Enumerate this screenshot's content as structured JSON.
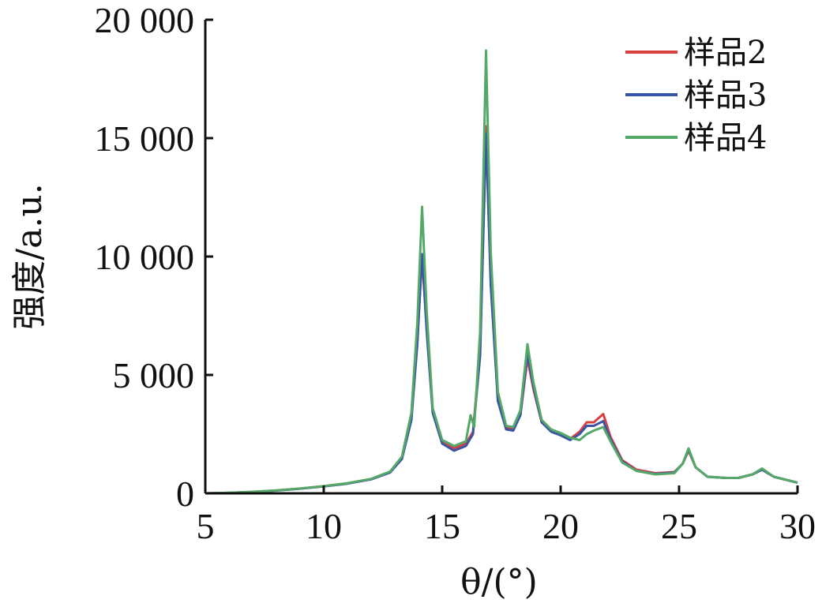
{
  "chart_data": {
    "type": "line",
    "title": "",
    "xlabel": "θ/(°)",
    "ylabel": "强度/a.u.",
    "xlim": [
      5,
      30
    ],
    "ylim": [
      0,
      20000
    ],
    "x_ticks": [
      5,
      10,
      15,
      20,
      25,
      30
    ],
    "y_ticks": [
      0,
      5000,
      10000,
      15000,
      20000
    ],
    "x_tick_labels": [
      "5",
      "10",
      "15",
      "20",
      "25",
      "30"
    ],
    "y_tick_labels": [
      "0",
      "5 000",
      "10 000",
      "15 000",
      "20 000"
    ],
    "grid": false,
    "legend_position": "top-right",
    "series": [
      {
        "name": "样品2",
        "color": "#d94040",
        "points": [
          [
            5,
            0
          ],
          [
            6,
            20
          ],
          [
            7,
            60
          ],
          [
            8,
            120
          ],
          [
            9,
            200
          ],
          [
            10,
            300
          ],
          [
            11,
            420
          ],
          [
            12,
            600
          ],
          [
            12.8,
            900
          ],
          [
            13.3,
            1500
          ],
          [
            13.7,
            3200
          ],
          [
            13.95,
            6500
          ],
          [
            14.15,
            10000
          ],
          [
            14.35,
            7000
          ],
          [
            14.6,
            3500
          ],
          [
            15,
            2200
          ],
          [
            15.5,
            1900
          ],
          [
            16,
            2100
          ],
          [
            16.3,
            2600
          ],
          [
            16.6,
            6000
          ],
          [
            16.85,
            15500
          ],
          [
            17.05,
            9000
          ],
          [
            17.35,
            4000
          ],
          [
            17.7,
            2800
          ],
          [
            18,
            2700
          ],
          [
            18.3,
            3300
          ],
          [
            18.6,
            5700
          ],
          [
            18.85,
            4400
          ],
          [
            19.2,
            3000
          ],
          [
            19.6,
            2650
          ],
          [
            20,
            2500
          ],
          [
            20.4,
            2300
          ],
          [
            20.8,
            2600
          ],
          [
            21.1,
            3000
          ],
          [
            21.4,
            3000
          ],
          [
            21.8,
            3350
          ],
          [
            22.1,
            2400
          ],
          [
            22.6,
            1400
          ],
          [
            23.2,
            1000
          ],
          [
            24,
            850
          ],
          [
            24.8,
            900
          ],
          [
            25.15,
            1250
          ],
          [
            25.4,
            1800
          ],
          [
            25.7,
            1100
          ],
          [
            26.2,
            700
          ],
          [
            27,
            650
          ],
          [
            27.5,
            650
          ],
          [
            28.1,
            800
          ],
          [
            28.5,
            1000
          ],
          [
            29,
            700
          ],
          [
            30,
            450
          ]
        ]
      },
      {
        "name": "样品3",
        "color": "#3b55a5",
        "points": [
          [
            5,
            0
          ],
          [
            6,
            20
          ],
          [
            7,
            60
          ],
          [
            8,
            115
          ],
          [
            9,
            195
          ],
          [
            10,
            290
          ],
          [
            11,
            410
          ],
          [
            12,
            590
          ],
          [
            12.8,
            880
          ],
          [
            13.3,
            1450
          ],
          [
            13.7,
            3100
          ],
          [
            13.95,
            6300
          ],
          [
            14.15,
            10100
          ],
          [
            14.35,
            6800
          ],
          [
            14.6,
            3400
          ],
          [
            15,
            2100
          ],
          [
            15.5,
            1800
          ],
          [
            16,
            2000
          ],
          [
            16.3,
            2500
          ],
          [
            16.6,
            5800
          ],
          [
            16.85,
            15200
          ],
          [
            17.05,
            8800
          ],
          [
            17.35,
            3900
          ],
          [
            17.7,
            2700
          ],
          [
            18,
            2650
          ],
          [
            18.3,
            3300
          ],
          [
            18.6,
            5900
          ],
          [
            18.85,
            4500
          ],
          [
            19.2,
            3000
          ],
          [
            19.6,
            2600
          ],
          [
            20,
            2450
          ],
          [
            20.4,
            2250
          ],
          [
            20.8,
            2500
          ],
          [
            21.1,
            2850
          ],
          [
            21.4,
            2850
          ],
          [
            21.8,
            3050
          ],
          [
            22.1,
            2300
          ],
          [
            22.6,
            1350
          ],
          [
            23.2,
            950
          ],
          [
            24,
            820
          ],
          [
            24.8,
            880
          ],
          [
            25.15,
            1250
          ],
          [
            25.4,
            1850
          ],
          [
            25.7,
            1100
          ],
          [
            26.2,
            700
          ],
          [
            27,
            650
          ],
          [
            27.5,
            650
          ],
          [
            28.1,
            800
          ],
          [
            28.5,
            1000
          ],
          [
            29,
            700
          ],
          [
            30,
            450
          ]
        ]
      },
      {
        "name": "样品4",
        "color": "#55a868",
        "points": [
          [
            5,
            0
          ],
          [
            6,
            25
          ],
          [
            7,
            65
          ],
          [
            8,
            125
          ],
          [
            9,
            205
          ],
          [
            10,
            305
          ],
          [
            11,
            430
          ],
          [
            12,
            610
          ],
          [
            12.8,
            920
          ],
          [
            13.3,
            1550
          ],
          [
            13.7,
            3400
          ],
          [
            13.95,
            7200
          ],
          [
            14.15,
            12100
          ],
          [
            14.35,
            7600
          ],
          [
            14.6,
            3600
          ],
          [
            15,
            2250
          ],
          [
            15.5,
            2000
          ],
          [
            16,
            2200
          ],
          [
            16.2,
            3300
          ],
          [
            16.35,
            2800
          ],
          [
            16.6,
            6800
          ],
          [
            16.85,
            18700
          ],
          [
            17.05,
            10200
          ],
          [
            17.35,
            4300
          ],
          [
            17.7,
            2850
          ],
          [
            18,
            2800
          ],
          [
            18.3,
            3500
          ],
          [
            18.6,
            6300
          ],
          [
            18.85,
            4700
          ],
          [
            19.2,
            3100
          ],
          [
            19.6,
            2700
          ],
          [
            20,
            2550
          ],
          [
            20.4,
            2350
          ],
          [
            20.8,
            2250
          ],
          [
            21.1,
            2500
          ],
          [
            21.4,
            2650
          ],
          [
            21.8,
            2800
          ],
          [
            22.1,
            2200
          ],
          [
            22.6,
            1300
          ],
          [
            23.2,
            950
          ],
          [
            24,
            800
          ],
          [
            24.8,
            850
          ],
          [
            25.15,
            1250
          ],
          [
            25.4,
            1900
          ],
          [
            25.7,
            1100
          ],
          [
            26.2,
            700
          ],
          [
            27,
            650
          ],
          [
            27.5,
            650
          ],
          [
            28.1,
            800
          ],
          [
            28.5,
            1050
          ],
          [
            29,
            700
          ],
          [
            30,
            450
          ]
        ]
      }
    ]
  }
}
